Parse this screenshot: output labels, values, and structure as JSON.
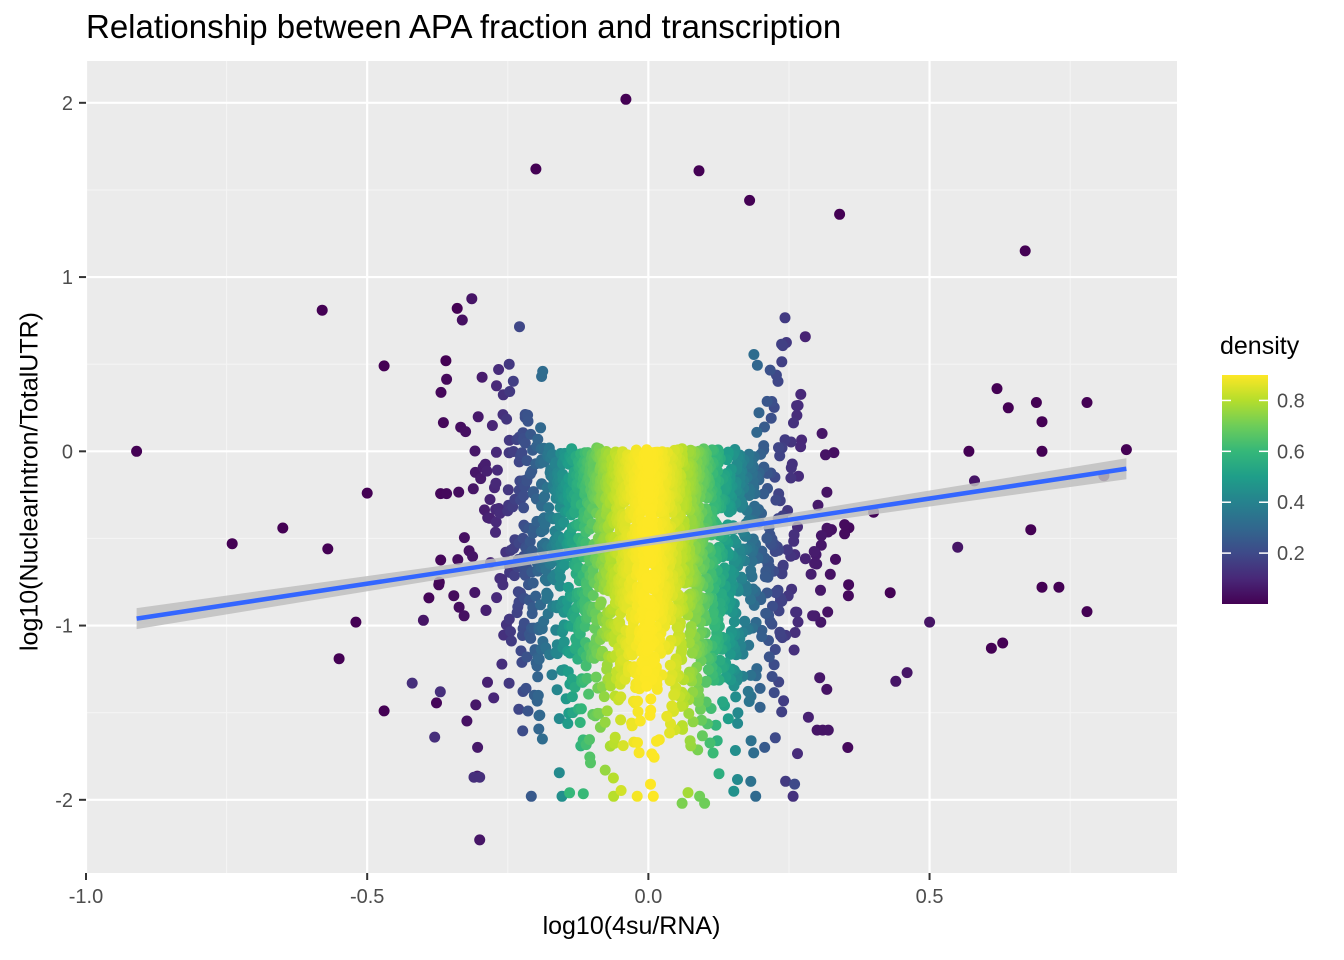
{
  "chart_data": {
    "type": "scatter",
    "title": "Relationship between APA fraction and transcription",
    "xlabel": "log10(4su/RNA)",
    "ylabel": "log10(NuclearIntron/TotalUTR)",
    "xlim": [
      -1.0,
      0.94
    ],
    "ylim": [
      -2.42,
      2.24
    ],
    "x_ticks": [
      {
        "value": -1.0,
        "label": "-1.0"
      },
      {
        "value": -0.5,
        "label": "-0.5"
      },
      {
        "value": 0.0,
        "label": "0.0"
      },
      {
        "value": 0.5,
        "label": "0.5"
      }
    ],
    "y_ticks": [
      {
        "value": 2,
        "label": "2"
      },
      {
        "value": 1,
        "label": "1"
      },
      {
        "value": 0,
        "label": "0"
      },
      {
        "value": -1,
        "label": "-1"
      },
      {
        "value": -2,
        "label": "-2"
      }
    ],
    "grid": true,
    "panel_background": "#EBEBEB",
    "color_scale": {
      "name": "density",
      "palette": "viridis",
      "range": [
        0.0,
        0.9
      ],
      "ticks": [
        {
          "value": 0.2,
          "label": "0.2"
        },
        {
          "value": 0.4,
          "label": "0.4"
        },
        {
          "value": 0.6,
          "label": "0.6"
        },
        {
          "value": 0.8,
          "label": "0.8"
        }
      ],
      "colors": [
        "#440154",
        "#482878",
        "#3E4A89",
        "#31688E",
        "#26828E",
        "#1F9E89",
        "#35B779",
        "#6DCD59",
        "#B4DE2C",
        "#FDE725"
      ],
      "legend_position": "right"
    },
    "trend_line": {
      "method": "linear",
      "color": "#3366FF",
      "ribbon_color": "#C0C0C0",
      "points": [
        [
          -0.91,
          -0.96
        ],
        [
          0.85,
          -0.1
        ]
      ],
      "ribbon_halfwidth": [
        0.06,
        0.025,
        0.06
      ]
    },
    "cloud": {
      "n": 2600,
      "x_center": 0.0,
      "x_sd": 0.13,
      "y_intercept": -0.52,
      "y_sd": 0.55,
      "y_cap": 0.33,
      "seed": 7
    },
    "points": [
      [
        -0.91,
        0.0,
        0.0
      ],
      [
        -0.74,
        -0.53,
        0.0
      ],
      [
        -0.65,
        -0.44,
        0.0
      ],
      [
        -0.58,
        0.81,
        0.0
      ],
      [
        -0.57,
        -0.56,
        0.0
      ],
      [
        -0.55,
        -1.19,
        0.0
      ],
      [
        -0.52,
        -0.98,
        0.0
      ],
      [
        -0.5,
        -0.24,
        0.0
      ],
      [
        -0.47,
        -1.49,
        0.0
      ],
      [
        -0.47,
        0.49,
        0.0
      ],
      [
        -0.36,
        0.52,
        0.0
      ],
      [
        -0.34,
        0.82,
        0.0
      ],
      [
        -0.4,
        -0.97,
        0.05
      ],
      [
        -0.04,
        2.02,
        0.0
      ],
      [
        -0.2,
        1.62,
        0.0
      ],
      [
        0.09,
        1.61,
        0.0
      ],
      [
        0.18,
        1.44,
        0.0
      ],
      [
        0.34,
        1.36,
        0.0
      ],
      [
        0.67,
        1.15,
        0.0
      ],
      [
        0.85,
        0.01,
        0.0
      ],
      [
        0.78,
        0.28,
        0.0
      ],
      [
        0.81,
        -0.14,
        0.0
      ],
      [
        0.78,
        -0.92,
        0.0
      ],
      [
        0.73,
        -0.78,
        0.0
      ],
      [
        0.7,
        -0.78,
        0.0
      ],
      [
        0.63,
        -1.1,
        0.0
      ],
      [
        0.61,
        -1.13,
        0.0
      ],
      [
        -0.3,
        -2.23,
        0.05
      ],
      [
        0.06,
        -2.02,
        0.72
      ],
      [
        0.1,
        -2.02,
        0.7
      ],
      [
        -0.14,
        -1.96,
        0.6
      ],
      [
        0.26,
        -1.91,
        0.2
      ],
      [
        -0.31,
        -1.87,
        0.12
      ],
      [
        -0.3,
        -1.87,
        0.12
      ],
      [
        -0.38,
        -1.64,
        0.12
      ],
      [
        0.3,
        -1.6,
        0.05
      ],
      [
        0.31,
        -1.6,
        0.05
      ],
      [
        0.32,
        -1.6,
        0.05
      ],
      [
        0.44,
        -1.32,
        0.05
      ],
      [
        0.46,
        -1.27,
        0.05
      ],
      [
        -0.42,
        -1.33,
        0.12
      ],
      [
        -0.37,
        -1.38,
        0.12
      ],
      [
        0.5,
        -0.98,
        0.05
      ],
      [
        0.55,
        -0.55,
        0.05
      ],
      [
        0.58,
        -0.17,
        0.05
      ],
      [
        0.62,
        0.36,
        0.0
      ],
      [
        0.64,
        0.25,
        0.0
      ],
      [
        0.69,
        0.28,
        0.0
      ],
      [
        0.7,
        0.17,
        0.0
      ],
      [
        0.7,
        0.0,
        0.0
      ],
      [
        0.68,
        -0.45,
        0.0
      ],
      [
        0.57,
        0.0,
        0.0
      ]
    ]
  }
}
